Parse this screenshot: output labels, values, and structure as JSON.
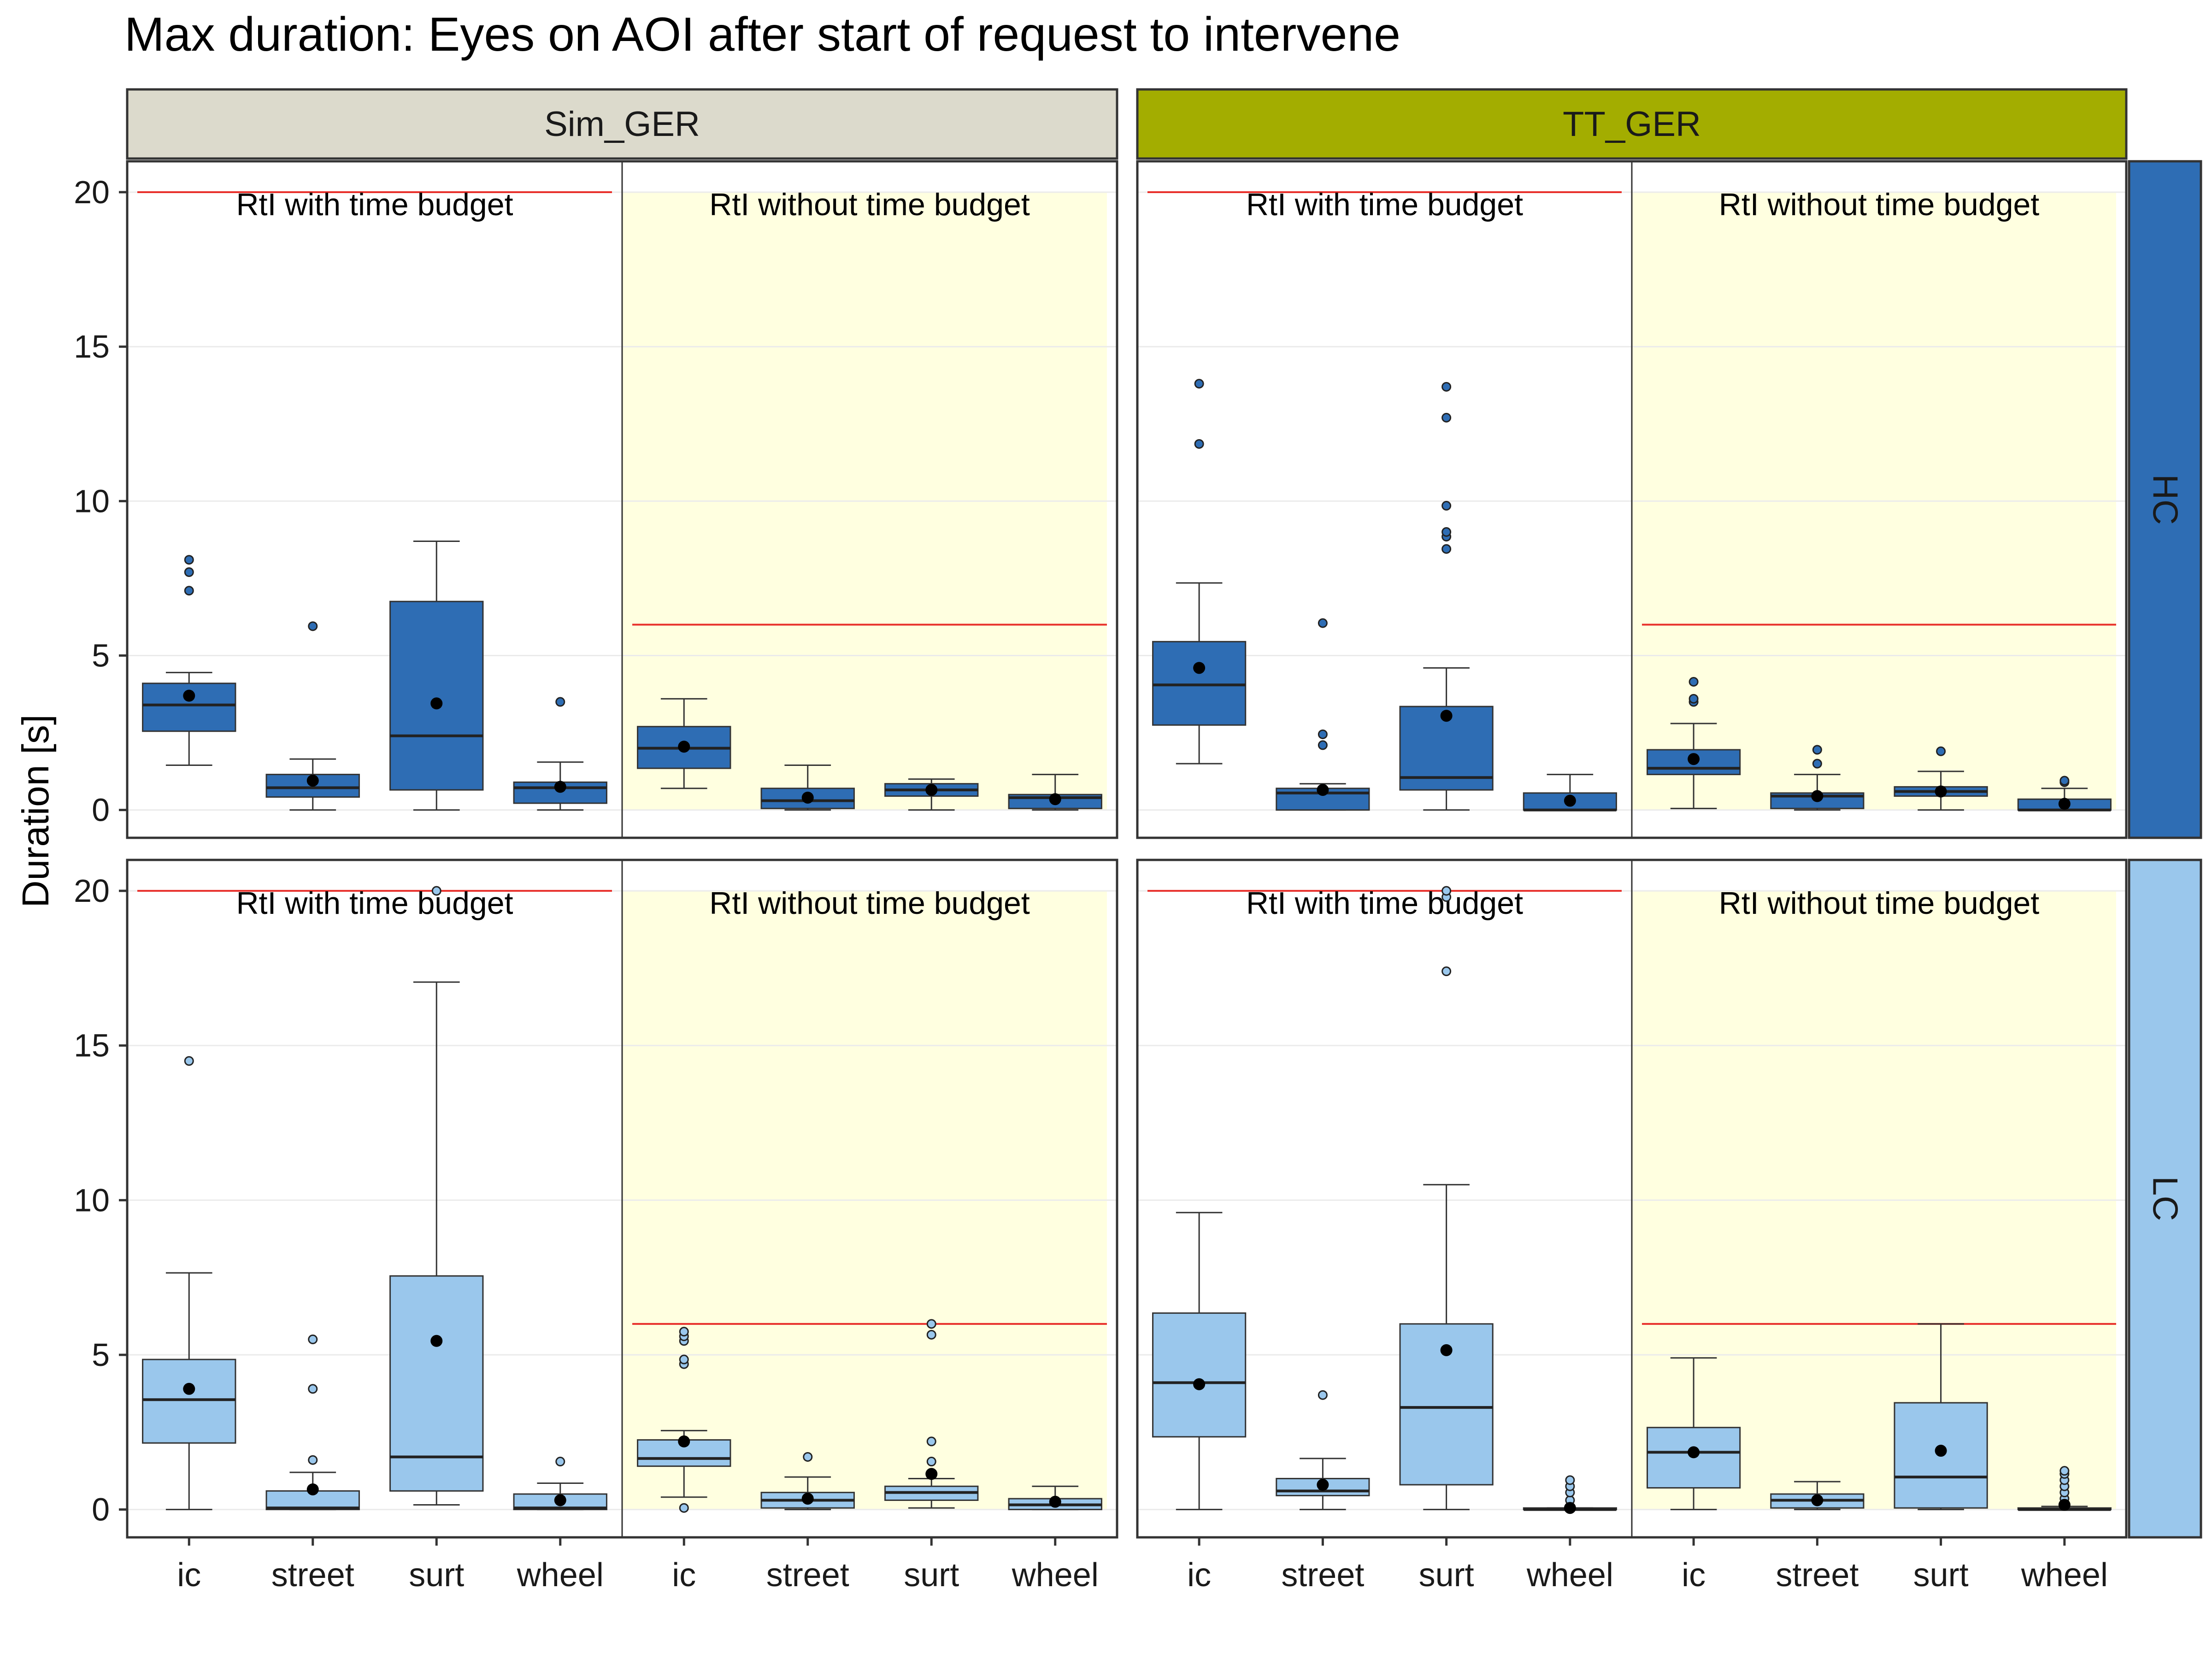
{
  "chart_data": {
    "type": "boxplot",
    "title": "Max duration: Eyes on AOI after start of request to intervene",
    "ylabel": "Duration [s]",
    "xlabel": "",
    "ylim": [
      -0.9,
      21.0
    ],
    "yticks": [
      0,
      5,
      10,
      15,
      20
    ],
    "grid": true,
    "columns": [
      {
        "name": "Sim_GER",
        "color": "#dcdacc"
      },
      {
        "name": "TT_GER",
        "color": "#a3ad00"
      }
    ],
    "rows": [
      {
        "name": "HC",
        "color": "#2e6db4"
      },
      {
        "name": "LC",
        "color": "#9ac7ec"
      }
    ],
    "conditions": [
      {
        "label": "RtI with time budget",
        "limit": 20,
        "shaded": false,
        "shade_color": "#ffffff"
      },
      {
        "label": "RtI without time budget",
        "limit": 6,
        "shaded": true,
        "shade_color": "#ffffe0"
      }
    ],
    "categories": [
      "ic",
      "street",
      "surt",
      "wheel"
    ],
    "colors": {
      "limit_line": "#e8302b",
      "mean_point": "#000000",
      "grid": "#ebebeb",
      "panel_border": "#333333"
    },
    "panels": [
      {
        "row": "HC",
        "column": "Sim_GER",
        "condition": "RtI with time budget",
        "boxes": [
          {
            "category": "ic",
            "min": 1.45,
            "q1": 2.55,
            "median": 3.4,
            "q3": 4.1,
            "max": 4.45,
            "mean": 3.7,
            "outliers": [
              7.1,
              7.7,
              8.1
            ]
          },
          {
            "category": "street",
            "min": 0.0,
            "q1": 0.42,
            "median": 0.72,
            "q3": 1.15,
            "max": 1.65,
            "mean": 0.95,
            "outliers": [
              5.95
            ]
          },
          {
            "category": "surt",
            "min": 0.0,
            "q1": 0.65,
            "median": 2.4,
            "q3": 6.75,
            "max": 8.7,
            "mean": 3.45,
            "outliers": []
          },
          {
            "category": "wheel",
            "min": 0.0,
            "q1": 0.22,
            "median": 0.72,
            "q3": 0.9,
            "max": 1.55,
            "mean": 0.75,
            "outliers": [
              3.5
            ]
          }
        ]
      },
      {
        "row": "HC",
        "column": "Sim_GER",
        "condition": "RtI without time budget",
        "boxes": [
          {
            "category": "ic",
            "min": 0.7,
            "q1": 1.35,
            "median": 2.0,
            "q3": 2.7,
            "max": 3.6,
            "mean": 2.05,
            "outliers": []
          },
          {
            "category": "street",
            "min": 0.0,
            "q1": 0.05,
            "median": 0.3,
            "q3": 0.7,
            "max": 1.45,
            "mean": 0.4,
            "outliers": []
          },
          {
            "category": "surt",
            "min": 0.0,
            "q1": 0.45,
            "median": 0.65,
            "q3": 0.85,
            "max": 1.0,
            "mean": 0.65,
            "outliers": []
          },
          {
            "category": "wheel",
            "min": 0.0,
            "q1": 0.05,
            "median": 0.4,
            "q3": 0.5,
            "max": 1.15,
            "mean": 0.35,
            "outliers": []
          }
        ]
      },
      {
        "row": "HC",
        "column": "TT_GER",
        "condition": "RtI with time budget",
        "boxes": [
          {
            "category": "ic",
            "min": 1.5,
            "q1": 2.75,
            "median": 4.05,
            "q3": 5.45,
            "max": 7.35,
            "mean": 4.6,
            "outliers": [
              11.85,
              13.8
            ]
          },
          {
            "category": "street",
            "min": 0.0,
            "q1": 0.0,
            "median": 0.55,
            "q3": 0.7,
            "max": 0.85,
            "mean": 0.65,
            "outliers": [
              2.1,
              2.45,
              6.05
            ]
          },
          {
            "category": "surt",
            "min": 0.0,
            "q1": 0.65,
            "median": 1.05,
            "q3": 3.35,
            "max": 4.6,
            "mean": 3.05,
            "outliers": [
              8.45,
              8.85,
              9.0,
              9.85,
              12.7,
              13.7
            ]
          },
          {
            "category": "wheel",
            "min": 0.0,
            "q1": 0.0,
            "median": 0.0,
            "q3": 0.55,
            "max": 1.15,
            "mean": 0.3,
            "outliers": []
          }
        ]
      },
      {
        "row": "HC",
        "column": "TT_GER",
        "condition": "RtI without time budget",
        "boxes": [
          {
            "category": "ic",
            "min": 0.05,
            "q1": 1.15,
            "median": 1.35,
            "q3": 1.95,
            "max": 2.8,
            "mean": 1.65,
            "outliers": [
              3.5,
              3.6,
              4.15
            ]
          },
          {
            "category": "street",
            "min": 0.0,
            "q1": 0.05,
            "median": 0.45,
            "q3": 0.55,
            "max": 1.15,
            "mean": 0.45,
            "outliers": [
              1.5,
              1.95
            ]
          },
          {
            "category": "surt",
            "min": 0.0,
            "q1": 0.45,
            "median": 0.6,
            "q3": 0.75,
            "max": 1.25,
            "mean": 0.6,
            "outliers": [
              1.9
            ]
          },
          {
            "category": "wheel",
            "min": 0.0,
            "q1": 0.0,
            "median": 0.0,
            "q3": 0.35,
            "max": 0.7,
            "mean": 0.2,
            "outliers": [
              0.9,
              0.95
            ]
          }
        ]
      },
      {
        "row": "LC",
        "column": "Sim_GER",
        "condition": "RtI with time budget",
        "boxes": [
          {
            "category": "ic",
            "min": 0.0,
            "q1": 2.15,
            "median": 3.55,
            "q3": 4.85,
            "max": 7.65,
            "mean": 3.9,
            "outliers": [
              14.5
            ]
          },
          {
            "category": "street",
            "min": 0.0,
            "q1": 0.0,
            "median": 0.05,
            "q3": 0.6,
            "max": 1.2,
            "mean": 0.65,
            "outliers": [
              1.6,
              3.9,
              5.5
            ]
          },
          {
            "category": "surt",
            "min": 0.15,
            "q1": 0.6,
            "median": 1.7,
            "q3": 7.55,
            "max": 17.05,
            "mean": 5.45,
            "outliers": [
              20.0
            ]
          },
          {
            "category": "wheel",
            "min": 0.0,
            "q1": 0.0,
            "median": 0.05,
            "q3": 0.5,
            "max": 0.85,
            "mean": 0.3,
            "outliers": [
              1.55
            ]
          }
        ]
      },
      {
        "row": "LC",
        "column": "Sim_GER",
        "condition": "RtI without time budget",
        "boxes": [
          {
            "category": "ic",
            "min": 0.4,
            "q1": 1.4,
            "median": 1.65,
            "q3": 2.25,
            "max": 2.55,
            "mean": 2.2,
            "outliers": [
              0.05,
              4.7,
              4.85,
              5.45,
              5.6,
              5.75
            ]
          },
          {
            "category": "street",
            "min": 0.0,
            "q1": 0.05,
            "median": 0.3,
            "q3": 0.55,
            "max": 1.05,
            "mean": 0.35,
            "outliers": [
              1.7
            ]
          },
          {
            "category": "surt",
            "min": 0.05,
            "q1": 0.3,
            "median": 0.55,
            "q3": 0.75,
            "max": 1.0,
            "mean": 1.15,
            "outliers": [
              1.55,
              2.2,
              5.65,
              6.0
            ]
          },
          {
            "category": "wheel",
            "min": 0.0,
            "q1": 0.0,
            "median": 0.15,
            "q3": 0.35,
            "max": 0.75,
            "mean": 0.25,
            "outliers": []
          }
        ]
      },
      {
        "row": "LC",
        "column": "TT_GER",
        "condition": "RtI with time budget",
        "boxes": [
          {
            "category": "ic",
            "min": 0.0,
            "q1": 2.35,
            "median": 4.1,
            "q3": 6.35,
            "max": 9.6,
            "mean": 4.05,
            "outliers": []
          },
          {
            "category": "street",
            "min": 0.0,
            "q1": 0.45,
            "median": 0.6,
            "q3": 1.0,
            "max": 1.65,
            "mean": 0.8,
            "outliers": [
              3.7
            ]
          },
          {
            "category": "surt",
            "min": 0.0,
            "q1": 0.8,
            "median": 3.3,
            "q3": 6.0,
            "max": 10.5,
            "mean": 5.15,
            "outliers": [
              17.4,
              19.8,
              20.0
            ]
          },
          {
            "category": "wheel",
            "min": 0.0,
            "q1": 0.0,
            "median": 0.0,
            "q3": 0.05,
            "max": 0.05,
            "mean": 0.05,
            "outliers": [
              0.3,
              0.55,
              0.75,
              0.95
            ]
          }
        ]
      },
      {
        "row": "LC",
        "column": "TT_GER",
        "condition": "RtI without time budget",
        "boxes": [
          {
            "category": "ic",
            "min": 0.0,
            "q1": 0.7,
            "median": 1.85,
            "q3": 2.65,
            "max": 4.9,
            "mean": 1.85,
            "outliers": []
          },
          {
            "category": "street",
            "min": 0.0,
            "q1": 0.05,
            "median": 0.3,
            "q3": 0.5,
            "max": 0.9,
            "mean": 0.3,
            "outliers": []
          },
          {
            "category": "surt",
            "min": 0.0,
            "q1": 0.05,
            "median": 1.05,
            "q3": 3.45,
            "max": 6.0,
            "mean": 1.9,
            "outliers": []
          },
          {
            "category": "wheel",
            "min": 0.0,
            "q1": 0.0,
            "median": 0.0,
            "q3": 0.05,
            "max": 0.1,
            "mean": 0.15,
            "outliers": [
              0.35,
              0.55,
              0.75,
              0.95,
              1.15,
              1.25
            ]
          }
        ]
      }
    ]
  }
}
